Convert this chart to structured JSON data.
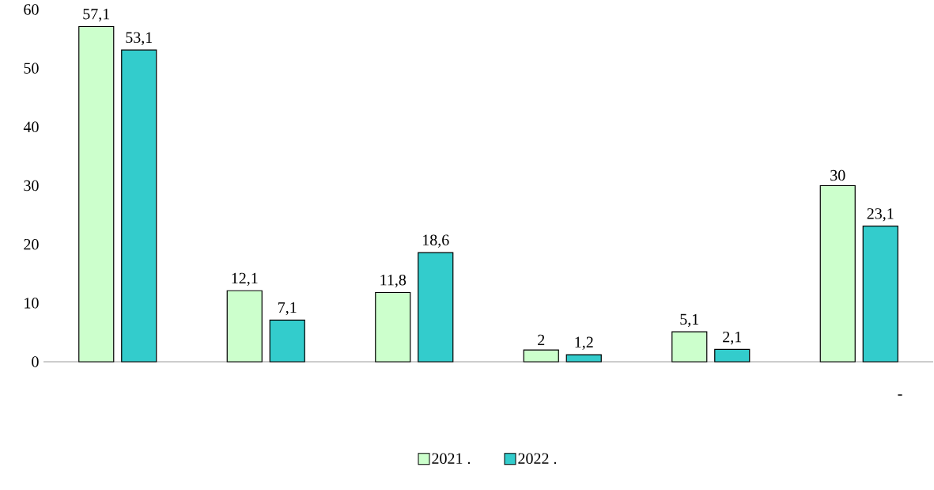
{
  "chart_data": {
    "type": "bar",
    "categories": [
      null,
      null,
      null,
      null,
      null,
      null
    ],
    "series": [
      {
        "name": "2021 .",
        "color": "#ccffcc",
        "values": [
          57.1,
          12.1,
          11.8,
          2,
          5.1,
          30
        ],
        "value_labels": [
          "57,1",
          "12,1",
          "11,8",
          "2",
          "5,1",
          "30"
        ]
      },
      {
        "name": "2022 .",
        "color": "#33cccc",
        "values": [
          53.1,
          7.1,
          18.6,
          1.2,
          2.1,
          23.1
        ],
        "value_labels": [
          "53,1",
          "7,1",
          "18,6",
          "1,2",
          "2,1",
          "23,1"
        ]
      }
    ],
    "ylim": [
      0,
      60
    ],
    "yticks": [
      0,
      10,
      20,
      30,
      40,
      50,
      60
    ],
    "legend": "bottom",
    "annotations": [
      "-"
    ]
  }
}
